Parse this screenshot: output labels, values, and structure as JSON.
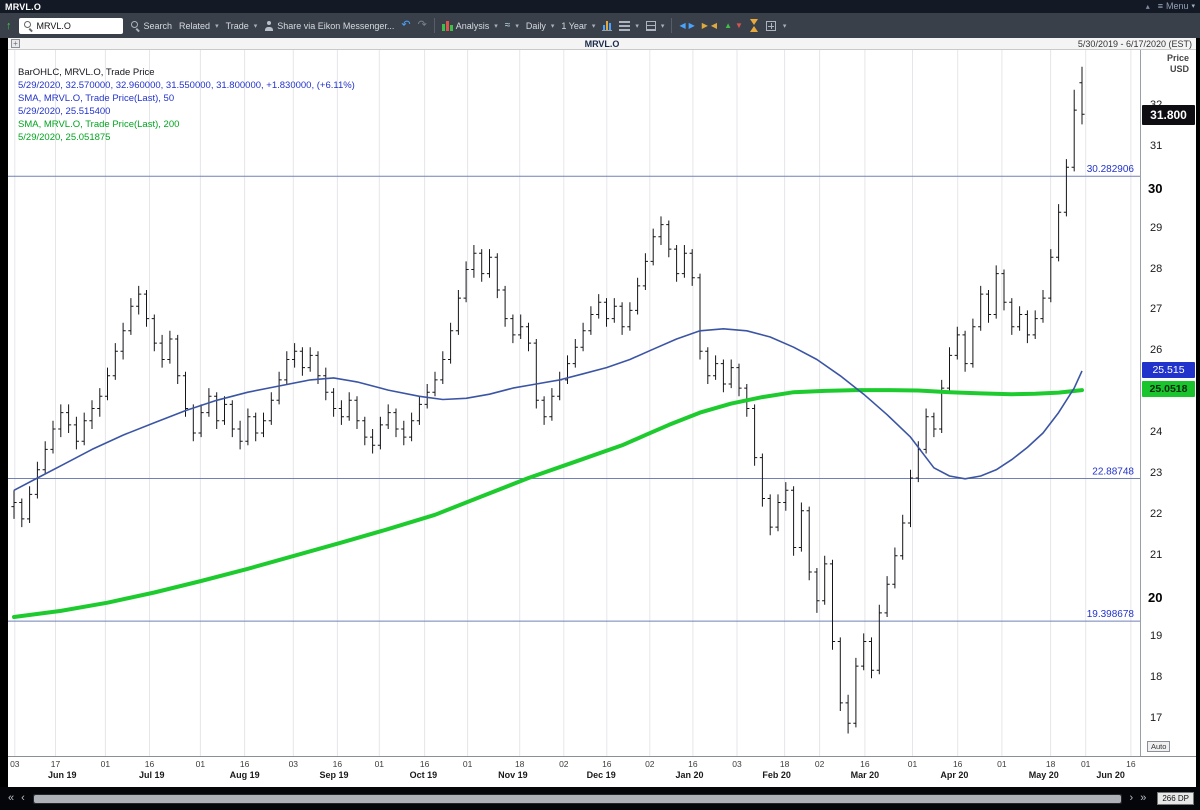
{
  "window": {
    "title": "MRVL.O",
    "menu_label": "Menu"
  },
  "toolbar": {
    "symbol_value": "MRVL.O",
    "search_label": "Search",
    "related_label": "Related",
    "trade_label": "Trade",
    "share_label": "Share via Eikon Messenger...",
    "analysis_label": "Analysis",
    "interval_label": "Daily",
    "range_label": "1 Year"
  },
  "chart_header": {
    "symbol": "MRVL.O",
    "date_range": "5/30/2019 - 6/17/2020 (EST)"
  },
  "legend": {
    "line1": "BarOHLC, MRVL.O, Trade Price",
    "line2": "5/29/2020, 32.570000, 32.960000, 31.550000, 31.800000, +1.830000, (+6.11%)",
    "line3": "SMA, MRVL.O, Trade Price(Last),  50",
    "line4": "5/29/2020, 25.515400",
    "line5": "SMA, MRVL.O, Trade Price(Last),  200",
    "line6": "5/29/2020, 25.051875"
  },
  "axis": {
    "price_title": "Price",
    "currency": "USD"
  },
  "price_labels": {
    "last": "31.800",
    "sma50": "25.515",
    "sma200": "25.0518"
  },
  "footer": {
    "auto_label": "Auto",
    "dp_label": "266 DP"
  },
  "x_axis": {
    "ticks": [
      {
        "day": "03",
        "f": 0.006
      },
      {
        "day": "17",
        "f": 0.042
      },
      {
        "day": "01",
        "f": 0.086
      },
      {
        "day": "16",
        "f": 0.125
      },
      {
        "day": "01",
        "f": 0.17
      },
      {
        "day": "16",
        "f": 0.209
      },
      {
        "day": "03",
        "f": 0.252
      },
      {
        "day": "16",
        "f": 0.291
      },
      {
        "day": "01",
        "f": 0.328
      },
      {
        "day": "16",
        "f": 0.368
      },
      {
        "day": "01",
        "f": 0.406
      },
      {
        "day": "18",
        "f": 0.452
      },
      {
        "day": "02",
        "f": 0.491
      },
      {
        "day": "16",
        "f": 0.529
      },
      {
        "day": "02",
        "f": 0.567
      },
      {
        "day": "16",
        "f": 0.605
      },
      {
        "day": "03",
        "f": 0.644
      },
      {
        "day": "18",
        "f": 0.686
      },
      {
        "day": "02",
        "f": 0.717
      },
      {
        "day": "16",
        "f": 0.757
      },
      {
        "day": "01",
        "f": 0.799
      },
      {
        "day": "16",
        "f": 0.839
      },
      {
        "day": "01",
        "f": 0.878
      },
      {
        "day": "18",
        "f": 0.921
      },
      {
        "day": "01",
        "f": 0.952
      },
      {
        "day": "16",
        "f": 0.992
      }
    ],
    "months": [
      {
        "label": "Jun 19",
        "f": 0.048
      },
      {
        "label": "Jul 19",
        "f": 0.127
      },
      {
        "label": "Aug 19",
        "f": 0.209
      },
      {
        "label": "Sep 19",
        "f": 0.288
      },
      {
        "label": "Oct 19",
        "f": 0.367
      },
      {
        "label": "Nov 19",
        "f": 0.446
      },
      {
        "label": "Dec 19",
        "f": 0.524
      },
      {
        "label": "Jan 20",
        "f": 0.602
      },
      {
        "label": "Feb 20",
        "f": 0.679
      },
      {
        "label": "Mar 20",
        "f": 0.757
      },
      {
        "label": "Apr 20",
        "f": 0.836
      },
      {
        "label": "May 20",
        "f": 0.915
      },
      {
        "label": "Jun 20",
        "f": 0.974
      }
    ]
  },
  "chart_data": {
    "type": "ohlc-bar",
    "symbol": "MRVL.O",
    "interval": "Daily",
    "x_range": [
      "5/30/2019",
      "6/17/2020"
    ],
    "ylim": [
      16.1,
      33.37
    ],
    "y_ticks": [
      17,
      18,
      19,
      20,
      21,
      22,
      23,
      24,
      25,
      26,
      27,
      28,
      29,
      30,
      31,
      32
    ],
    "y_ticks_bold": [
      20,
      30
    ],
    "last_bar": {
      "date": "5/29/2020",
      "open": 32.57,
      "high": 32.96,
      "low": 31.55,
      "close": 31.8,
      "change": "+1.830000",
      "change_pct": "+6.11%"
    },
    "last_price": 31.8,
    "sma50_last": 25.5154,
    "sma200_last": 25.051875,
    "levels": [
      {
        "value": 30.282906,
        "label": "30.282906"
      },
      {
        "value": 22.88748,
        "label": "22.88748"
      },
      {
        "value": 19.398678,
        "label": "19.398678"
      }
    ],
    "indicators": [
      {
        "name": "SMA",
        "period": 50,
        "last": 25.5154
      },
      {
        "name": "SMA",
        "period": 200,
        "last": 25.051875
      }
    ],
    "colors": {
      "bar": "#15151a",
      "sma50": "#3b55a5",
      "sma200": "#1ecb2e",
      "level": "#7181b8",
      "level_text": "#2233cc"
    },
    "bars": [
      [
        22.2,
        22.6,
        21.9,
        22.3
      ],
      [
        22.3,
        22.4,
        21.7,
        21.9
      ],
      [
        21.9,
        22.7,
        21.8,
        22.5
      ],
      [
        22.5,
        23.3,
        22.4,
        23.1
      ],
      [
        23.1,
        23.8,
        23.0,
        23.6
      ],
      [
        23.6,
        24.3,
        23.5,
        24.1
      ],
      [
        24.1,
        24.7,
        23.9,
        24.5
      ],
      [
        24.5,
        24.7,
        24.0,
        24.2
      ],
      [
        24.2,
        24.4,
        23.6,
        23.8
      ],
      [
        23.8,
        24.5,
        23.7,
        24.3
      ],
      [
        24.3,
        24.8,
        24.1,
        24.6
      ],
      [
        24.6,
        25.1,
        24.4,
        24.9
      ],
      [
        24.9,
        25.6,
        24.8,
        25.4
      ],
      [
        25.4,
        26.2,
        25.3,
        26.0
      ],
      [
        26.0,
        26.7,
        25.8,
        26.5
      ],
      [
        26.5,
        27.3,
        26.4,
        27.1
      ],
      [
        27.1,
        27.6,
        26.9,
        27.4
      ],
      [
        27.4,
        27.5,
        26.6,
        26.8
      ],
      [
        26.8,
        26.9,
        26.0,
        26.2
      ],
      [
        26.2,
        26.4,
        25.6,
        25.8
      ],
      [
        25.8,
        26.5,
        25.7,
        26.3
      ],
      [
        26.3,
        26.4,
        25.2,
        25.4
      ],
      [
        25.4,
        25.5,
        24.4,
        24.6
      ],
      [
        24.6,
        24.7,
        23.8,
        24.0
      ],
      [
        24.0,
        24.7,
        23.9,
        24.5
      ],
      [
        24.5,
        25.1,
        24.4,
        24.9
      ],
      [
        24.9,
        25.0,
        24.1,
        24.3
      ],
      [
        24.3,
        24.9,
        24.2,
        24.7
      ],
      [
        24.7,
        24.8,
        23.9,
        24.1
      ],
      [
        24.1,
        24.3,
        23.6,
        23.8
      ],
      [
        23.8,
        24.6,
        23.7,
        24.4
      ],
      [
        24.4,
        24.5,
        23.8,
        24.0
      ],
      [
        24.0,
        24.5,
        23.9,
        24.3
      ],
      [
        24.3,
        25.0,
        24.2,
        24.8
      ],
      [
        24.8,
        25.5,
        24.7,
        25.3
      ],
      [
        25.3,
        26.0,
        25.2,
        25.8
      ],
      [
        25.8,
        26.2,
        25.6,
        26.0
      ],
      [
        26.0,
        26.1,
        25.4,
        25.6
      ],
      [
        25.6,
        26.1,
        25.5,
        25.9
      ],
      [
        25.9,
        26.0,
        25.2,
        25.4
      ],
      [
        25.4,
        25.6,
        24.8,
        25.0
      ],
      [
        25.0,
        25.1,
        24.4,
        24.6
      ],
      [
        24.6,
        24.8,
        24.2,
        24.4
      ],
      [
        24.4,
        25.0,
        24.3,
        24.8
      ],
      [
        24.8,
        24.9,
        24.1,
        24.3
      ],
      [
        24.3,
        24.4,
        23.7,
        23.9
      ],
      [
        23.9,
        24.1,
        23.5,
        23.7
      ],
      [
        23.7,
        24.4,
        23.6,
        24.2
      ],
      [
        24.2,
        24.7,
        24.1,
        24.5
      ],
      [
        24.5,
        24.6,
        23.9,
        24.1
      ],
      [
        24.1,
        24.3,
        23.7,
        23.9
      ],
      [
        23.9,
        24.5,
        23.8,
        24.3
      ],
      [
        24.3,
        24.9,
        24.2,
        24.7
      ],
      [
        24.7,
        25.2,
        24.6,
        25.0
      ],
      [
        25.0,
        25.5,
        24.9,
        25.3
      ],
      [
        25.3,
        26.0,
        25.2,
        25.8
      ],
      [
        25.8,
        26.7,
        25.7,
        26.5
      ],
      [
        26.5,
        27.5,
        26.4,
        27.3
      ],
      [
        27.3,
        28.2,
        27.2,
        28.0
      ],
      [
        28.0,
        28.6,
        27.8,
        28.4
      ],
      [
        28.4,
        28.5,
        27.7,
        27.9
      ],
      [
        27.9,
        28.5,
        27.8,
        28.3
      ],
      [
        28.3,
        28.4,
        27.3,
        27.5
      ],
      [
        27.5,
        27.6,
        26.6,
        26.8
      ],
      [
        26.8,
        26.9,
        26.2,
        26.4
      ],
      [
        26.4,
        26.9,
        26.3,
        26.6
      ],
      [
        26.6,
        26.7,
        26.0,
        26.2
      ],
      [
        26.2,
        26.3,
        24.6,
        24.8
      ],
      [
        24.8,
        24.9,
        24.2,
        24.4
      ],
      [
        24.4,
        25.1,
        24.3,
        24.9
      ],
      [
        24.9,
        25.5,
        24.8,
        25.3
      ],
      [
        25.3,
        25.9,
        25.2,
        25.7
      ],
      [
        25.7,
        26.3,
        25.6,
        26.1
      ],
      [
        26.1,
        26.7,
        26.0,
        26.5
      ],
      [
        26.5,
        27.1,
        26.4,
        26.9
      ],
      [
        26.9,
        27.4,
        26.8,
        27.2
      ],
      [
        27.2,
        27.3,
        26.6,
        26.8
      ],
      [
        26.8,
        27.3,
        26.7,
        27.1
      ],
      [
        27.1,
        27.2,
        26.4,
        26.6
      ],
      [
        26.6,
        27.2,
        26.5,
        27.0
      ],
      [
        27.0,
        27.8,
        26.9,
        27.6
      ],
      [
        27.6,
        28.4,
        27.5,
        28.2
      ],
      [
        28.2,
        29.0,
        28.1,
        28.8
      ],
      [
        28.8,
        29.3,
        28.6,
        29.1
      ],
      [
        29.1,
        29.2,
        28.3,
        28.5
      ],
      [
        28.5,
        28.6,
        27.7,
        27.9
      ],
      [
        27.9,
        28.6,
        27.8,
        28.4
      ],
      [
        28.4,
        28.5,
        27.6,
        27.8
      ],
      [
        27.8,
        27.9,
        25.8,
        26.0
      ],
      [
        26.0,
        26.1,
        25.2,
        25.4
      ],
      [
        25.4,
        25.9,
        25.3,
        25.7
      ],
      [
        25.7,
        25.8,
        25.0,
        25.2
      ],
      [
        25.2,
        25.8,
        25.1,
        25.6
      ],
      [
        25.6,
        25.7,
        24.9,
        25.1
      ],
      [
        25.1,
        25.2,
        24.4,
        24.6
      ],
      [
        24.6,
        24.7,
        23.2,
        23.4
      ],
      [
        23.4,
        23.5,
        22.2,
        22.4
      ],
      [
        22.4,
        22.5,
        21.5,
        21.7
      ],
      [
        21.7,
        22.5,
        21.6,
        22.3
      ],
      [
        22.3,
        22.8,
        22.1,
        22.6
      ],
      [
        22.6,
        22.7,
        21.0,
        21.2
      ],
      [
        21.2,
        22.3,
        21.1,
        22.1
      ],
      [
        22.1,
        22.2,
        20.4,
        20.6
      ],
      [
        20.6,
        20.7,
        19.6,
        19.9
      ],
      [
        19.9,
        21.0,
        19.8,
        20.8
      ],
      [
        20.8,
        20.9,
        18.7,
        18.9
      ],
      [
        18.9,
        19.0,
        17.2,
        17.4
      ],
      [
        17.4,
        17.6,
        16.65,
        16.9
      ],
      [
        16.9,
        18.5,
        16.8,
        18.3
      ],
      [
        18.3,
        19.1,
        18.2,
        18.9
      ],
      [
        18.9,
        19.0,
        18.0,
        18.2
      ],
      [
        18.2,
        19.8,
        18.1,
        19.6
      ],
      [
        19.6,
        20.5,
        19.5,
        20.3
      ],
      [
        20.3,
        21.2,
        20.2,
        21.0
      ],
      [
        21.0,
        22.0,
        20.9,
        21.8
      ],
      [
        21.8,
        23.1,
        21.7,
        22.9
      ],
      [
        22.9,
        23.8,
        22.8,
        23.6
      ],
      [
        23.6,
        24.6,
        23.5,
        24.4
      ],
      [
        24.4,
        24.5,
        23.9,
        24.1
      ],
      [
        24.1,
        25.3,
        24.0,
        25.1
      ],
      [
        25.1,
        26.1,
        25.0,
        25.9
      ],
      [
        25.9,
        26.6,
        25.8,
        26.4
      ],
      [
        26.4,
        26.5,
        25.5,
        25.7
      ],
      [
        25.7,
        26.8,
        25.6,
        26.6
      ],
      [
        26.6,
        27.6,
        26.5,
        27.4
      ],
      [
        27.4,
        27.5,
        26.7,
        26.9
      ],
      [
        26.9,
        28.1,
        26.8,
        27.9
      ],
      [
        27.9,
        28.0,
        27.0,
        27.2
      ],
      [
        27.2,
        27.3,
        26.4,
        26.6
      ],
      [
        26.6,
        27.1,
        26.5,
        26.9
      ],
      [
        26.9,
        27.0,
        26.2,
        26.4
      ],
      [
        26.4,
        27.0,
        26.3,
        26.8
      ],
      [
        26.8,
        27.5,
        26.7,
        27.3
      ],
      [
        27.3,
        28.5,
        27.2,
        28.3
      ],
      [
        28.3,
        29.6,
        28.2,
        29.4
      ],
      [
        29.4,
        30.7,
        29.3,
        30.5
      ],
      [
        30.5,
        32.4,
        30.4,
        31.9
      ],
      [
        32.57,
        32.96,
        31.55,
        31.8
      ]
    ],
    "sma50": [
      [
        0,
        22.6
      ],
      [
        3,
        22.9
      ],
      [
        6,
        23.2
      ],
      [
        10,
        23.6
      ],
      [
        14,
        23.95
      ],
      [
        18,
        24.25
      ],
      [
        22,
        24.55
      ],
      [
        26,
        24.8
      ],
      [
        30,
        25.0
      ],
      [
        34,
        25.15
      ],
      [
        38,
        25.3
      ],
      [
        41,
        25.35
      ],
      [
        44,
        25.25
      ],
      [
        48,
        25.05
      ],
      [
        52,
        24.9
      ],
      [
        55,
        24.82
      ],
      [
        58,
        24.85
      ],
      [
        61,
        24.95
      ],
      [
        64,
        25.1
      ],
      [
        67,
        25.2
      ],
      [
        70,
        25.3
      ],
      [
        73,
        25.45
      ],
      [
        76,
        25.6
      ],
      [
        79,
        25.8
      ],
      [
        82,
        26.05
      ],
      [
        85,
        26.3
      ],
      [
        88,
        26.5
      ],
      [
        91,
        26.55
      ],
      [
        94,
        26.5
      ],
      [
        97,
        26.35
      ],
      [
        100,
        26.1
      ],
      [
        103,
        25.8
      ],
      [
        106,
        25.4
      ],
      [
        109,
        24.95
      ],
      [
        112,
        24.45
      ],
      [
        115,
        23.9
      ],
      [
        118,
        23.15
      ],
      [
        120,
        22.95
      ],
      [
        122,
        22.88
      ],
      [
        124,
        22.95
      ],
      [
        126,
        23.1
      ],
      [
        128,
        23.35
      ],
      [
        130,
        23.65
      ],
      [
        132,
        24.0
      ],
      [
        134,
        24.5
      ],
      [
        136,
        25.1
      ],
      [
        137,
        25.52
      ]
    ],
    "sma200": [
      [
        0,
        19.5
      ],
      [
        6,
        19.65
      ],
      [
        12,
        19.85
      ],
      [
        18,
        20.1
      ],
      [
        24,
        20.38
      ],
      [
        30,
        20.68
      ],
      [
        36,
        21.0
      ],
      [
        42,
        21.32
      ],
      [
        48,
        21.65
      ],
      [
        54,
        22.0
      ],
      [
        60,
        22.45
      ],
      [
        66,
        22.9
      ],
      [
        72,
        23.3
      ],
      [
        78,
        23.7
      ],
      [
        81,
        23.95
      ],
      [
        84,
        24.2
      ],
      [
        88,
        24.5
      ],
      [
        92,
        24.72
      ],
      [
        96,
        24.88
      ],
      [
        100,
        25.0
      ],
      [
        104,
        25.03
      ],
      [
        108,
        25.05
      ],
      [
        112,
        25.05
      ],
      [
        116,
        25.04
      ],
      [
        120,
        25.0
      ],
      [
        124,
        24.97
      ],
      [
        128,
        24.95
      ],
      [
        131,
        24.96
      ],
      [
        134,
        24.99
      ],
      [
        137,
        25.05
      ]
    ]
  }
}
